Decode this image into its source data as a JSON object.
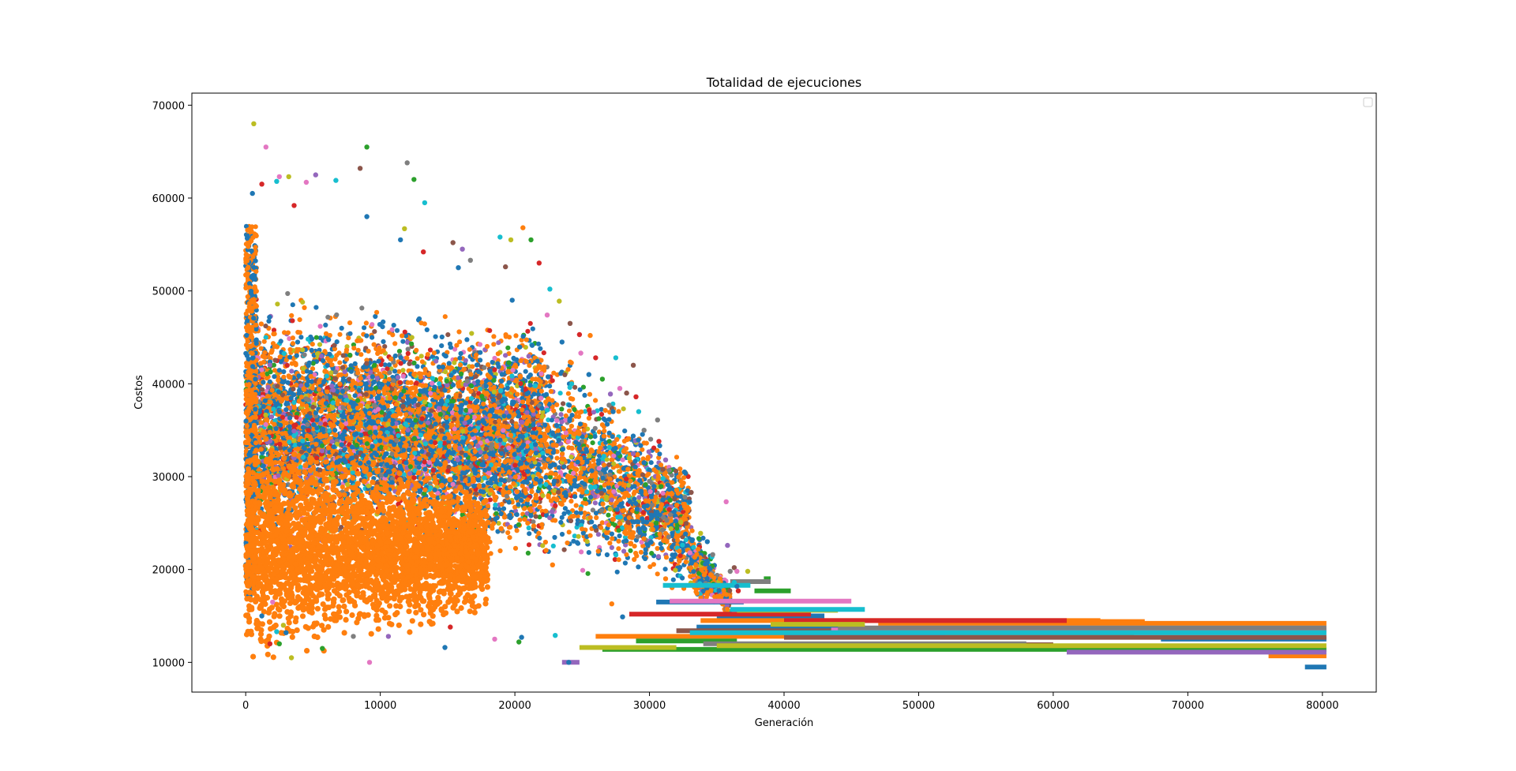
{
  "chart_data": {
    "type": "scatter",
    "title": "Totalidad de ejecuciones",
    "xlabel": "Generación",
    "ylabel": "Costos",
    "xlim": [
      -4000,
      84000
    ],
    "ylim": [
      6800,
      71300
    ],
    "xticks": [
      0,
      10000,
      20000,
      30000,
      40000,
      50000,
      60000,
      70000,
      80000
    ],
    "yticks": [
      10000,
      20000,
      30000,
      40000,
      50000,
      60000,
      70000
    ],
    "grid": false,
    "legend": {
      "placement": "top-right",
      "entries": []
    },
    "palette": [
      "#1f77b4",
      "#ff7f0e",
      "#2ca02c",
      "#d62728",
      "#9467bd",
      "#8c564b",
      "#e377c2",
      "#7f7f7f",
      "#bcbd22",
      "#17becf"
    ],
    "series": [
      {
        "color": "#1f77b4",
        "points": [
          [
            9000,
            58000
          ],
          [
            11500,
            55500
          ],
          [
            15800,
            52500
          ],
          [
            19800,
            49000
          ],
          [
            23500,
            44500
          ],
          [
            25500,
            41000
          ],
          [
            27300,
            37000
          ],
          [
            29600,
            31500
          ],
          [
            31000,
            27500
          ],
          [
            32600,
            30500
          ],
          [
            34300,
            23000
          ],
          [
            36500,
            18200
          ],
          [
            500,
            60500
          ],
          [
            1200,
            15000
          ],
          [
            3000,
            13200
          ],
          [
            14800,
            11600
          ],
          [
            20500,
            12700
          ],
          [
            28000,
            14900
          ],
          [
            24000,
            10000
          ]
        ],
        "segments": [
          [
            30500,
            37000,
            16500
          ],
          [
            35000,
            43000,
            15000
          ],
          [
            33500,
            46000,
            13800
          ],
          [
            78700,
            80300,
            9500
          ],
          [
            68000,
            80300,
            12500
          ]
        ]
      },
      {
        "color": "#ff7f0e",
        "points": [
          [
            20600,
            56800
          ],
          [
            25600,
            45200
          ],
          [
            28400,
            30800
          ],
          [
            22800,
            20500
          ],
          [
            27200,
            16300
          ],
          [
            9700,
            16100
          ],
          [
            31200,
            19000
          ]
        ],
        "segments": [
          [
            26000,
            66000,
            12800
          ],
          [
            33800,
            63500,
            14500
          ],
          [
            47000,
            80300,
            14200
          ],
          [
            60000,
            66800,
            14400
          ],
          [
            76000,
            80300,
            10700
          ]
        ]
      },
      {
        "color": "#2ca02c",
        "points": [
          [
            9000,
            65500
          ],
          [
            12500,
            62000
          ],
          [
            21200,
            55500
          ],
          [
            26500,
            40500
          ],
          [
            30500,
            25000
          ],
          [
            2500,
            12000
          ],
          [
            5700,
            11500
          ],
          [
            20300,
            12200
          ]
        ],
        "segments": [
          [
            26500,
            80300,
            11400
          ],
          [
            37800,
            40500,
            17700
          ],
          [
            38500,
            39000,
            19000
          ],
          [
            29000,
            36500,
            12300
          ]
        ]
      },
      {
        "color": "#d62728",
        "points": [
          [
            1200,
            61500
          ],
          [
            3600,
            59200
          ],
          [
            13200,
            54200
          ],
          [
            21800,
            53000
          ],
          [
            24800,
            45300
          ],
          [
            26000,
            42800
          ],
          [
            29000,
            38600
          ],
          [
            30700,
            33800
          ],
          [
            36600,
            17700
          ],
          [
            1800,
            12000
          ],
          [
            15200,
            13800
          ]
        ],
        "segments": [
          [
            28500,
            42000,
            15200
          ],
          [
            40000,
            61000,
            14500
          ]
        ]
      },
      {
        "color": "#9467bd",
        "points": [
          [
            5200,
            62500
          ],
          [
            16100,
            54500
          ],
          [
            27100,
            38900
          ],
          [
            31200,
            31800
          ],
          [
            35800,
            22600
          ],
          [
            10600,
            12800
          ]
        ],
        "segments": [
          [
            23500,
            24800,
            10000
          ],
          [
            61000,
            80300,
            11100
          ],
          [
            40000,
            52000,
            13000
          ]
        ]
      },
      {
        "color": "#8c564b",
        "points": [
          [
            8500,
            63200
          ],
          [
            15400,
            55200
          ],
          [
            19300,
            52600
          ],
          [
            24100,
            46500
          ],
          [
            28300,
            39000
          ],
          [
            28800,
            42000
          ],
          [
            31000,
            30800
          ],
          [
            33100,
            28300
          ],
          [
            36300,
            20200
          ]
        ],
        "segments": [
          [
            32000,
            79000,
            13400
          ],
          [
            38000,
            60000,
            11900
          ],
          [
            40000,
            80300,
            12700
          ]
        ]
      },
      {
        "color": "#e377c2",
        "points": [
          [
            1500,
            65500
          ],
          [
            2500,
            62300
          ],
          [
            4500,
            61700
          ],
          [
            22400,
            47400
          ],
          [
            24900,
            43300
          ],
          [
            27800,
            39500
          ],
          [
            33000,
            21800
          ],
          [
            35700,
            27300
          ],
          [
            36500,
            19800
          ],
          [
            9200,
            10000
          ],
          [
            2000,
            16500
          ],
          [
            18500,
            12500
          ]
        ],
        "segments": [
          [
            43500,
            80300,
            13500
          ],
          [
            31500,
            45000,
            16600
          ]
        ]
      },
      {
        "color": "#7f7f7f",
        "points": [
          [
            12000,
            63800
          ],
          [
            16700,
            53300
          ],
          [
            27000,
            37700
          ],
          [
            29600,
            35000
          ],
          [
            30600,
            36100
          ],
          [
            30000,
            29500
          ],
          [
            34700,
            21600
          ],
          [
            36000,
            19800
          ],
          [
            8000,
            12800
          ]
        ],
        "segments": [
          [
            34000,
            58000,
            12000
          ],
          [
            44000,
            80300,
            13700
          ],
          [
            36000,
            39000,
            18700
          ]
        ]
      },
      {
        "color": "#bcbd22",
        "points": [
          [
            600,
            68000
          ],
          [
            3200,
            62300
          ],
          [
            11800,
            56700
          ],
          [
            19700,
            55500
          ],
          [
            23300,
            48900
          ],
          [
            28500,
            32000
          ],
          [
            31600,
            24400
          ],
          [
            33800,
            23900
          ],
          [
            37300,
            19800
          ],
          [
            3400,
            10500
          ],
          [
            2800,
            14000
          ]
        ],
        "segments": [
          [
            35000,
            80300,
            11800
          ],
          [
            36500,
            44000,
            15600
          ],
          [
            39000,
            46000,
            14100
          ],
          [
            24800,
            32000,
            11600
          ]
        ]
      },
      {
        "color": "#17becf",
        "points": [
          [
            2300,
            61800
          ],
          [
            6700,
            61900
          ],
          [
            13300,
            59500
          ],
          [
            18900,
            55800
          ],
          [
            22600,
            50200
          ],
          [
            27500,
            42800
          ],
          [
            29200,
            37000
          ],
          [
            31000,
            29800
          ],
          [
            36300,
            18600
          ],
          [
            2300,
            13300
          ],
          [
            23000,
            12900
          ]
        ],
        "segments": [
          [
            36000,
            46000,
            15700
          ],
          [
            33000,
            80300,
            13200
          ],
          [
            31000,
            37500,
            18300
          ]
        ]
      }
    ]
  }
}
